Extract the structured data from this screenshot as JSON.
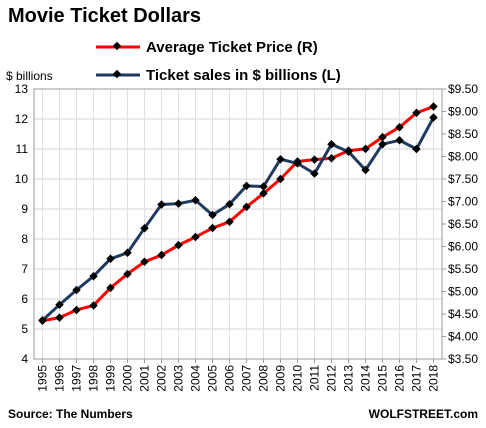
{
  "chart_data": {
    "type": "line",
    "title": "Movie Ticket Dollars",
    "ylabel_left": "$ billions",
    "x": [
      "1995",
      "1996",
      "1997",
      "1998",
      "1999",
      "2000",
      "2001",
      "2002",
      "2003",
      "2004",
      "2005",
      "2006",
      "2007",
      "2008",
      "2009",
      "2010",
      "2011",
      "2012",
      "2013",
      "2014",
      "2015",
      "2016",
      "2017",
      "2018"
    ],
    "series": [
      {
        "name": "Average Ticket Price (R)",
        "axis": "right",
        "color": "#ff0000",
        "values": [
          4.35,
          4.42,
          4.59,
          4.69,
          5.08,
          5.39,
          5.66,
          5.81,
          6.03,
          6.21,
          6.41,
          6.55,
          6.88,
          7.18,
          7.5,
          7.89,
          7.93,
          7.96,
          8.13,
          8.17,
          8.43,
          8.65,
          8.97,
          9.11
        ]
      },
      {
        "name": "Ticket sales in $ billions (L)",
        "axis": "left",
        "color": "#1f3a5f",
        "values": [
          5.29,
          5.81,
          6.3,
          6.76,
          7.34,
          7.54,
          8.36,
          9.15,
          9.18,
          9.29,
          8.8,
          9.16,
          9.77,
          9.75,
          10.66,
          10.52,
          10.18,
          11.16,
          10.91,
          10.3,
          11.16,
          11.29,
          11.0,
          12.05
        ]
      }
    ],
    "ylim_left": [
      4,
      13
    ],
    "ylim_right": [
      3.5,
      9.5
    ],
    "yticks_left": [
      "4",
      "5",
      "6",
      "7",
      "8",
      "9",
      "10",
      "11",
      "12",
      "13"
    ],
    "yticks_right": [
      "$3.50",
      "$4.00",
      "$4.50",
      "$5.00",
      "$5.50",
      "$6.00",
      "$6.50",
      "$7.00",
      "$7.50",
      "$8.00",
      "$8.50",
      "$9.00",
      "$9.50"
    ],
    "grid": true,
    "legend_position": "top-left",
    "marker_color": "#000000"
  },
  "source_text": "Source: The Numbers",
  "brand_text": "WOLFSTREET.com"
}
